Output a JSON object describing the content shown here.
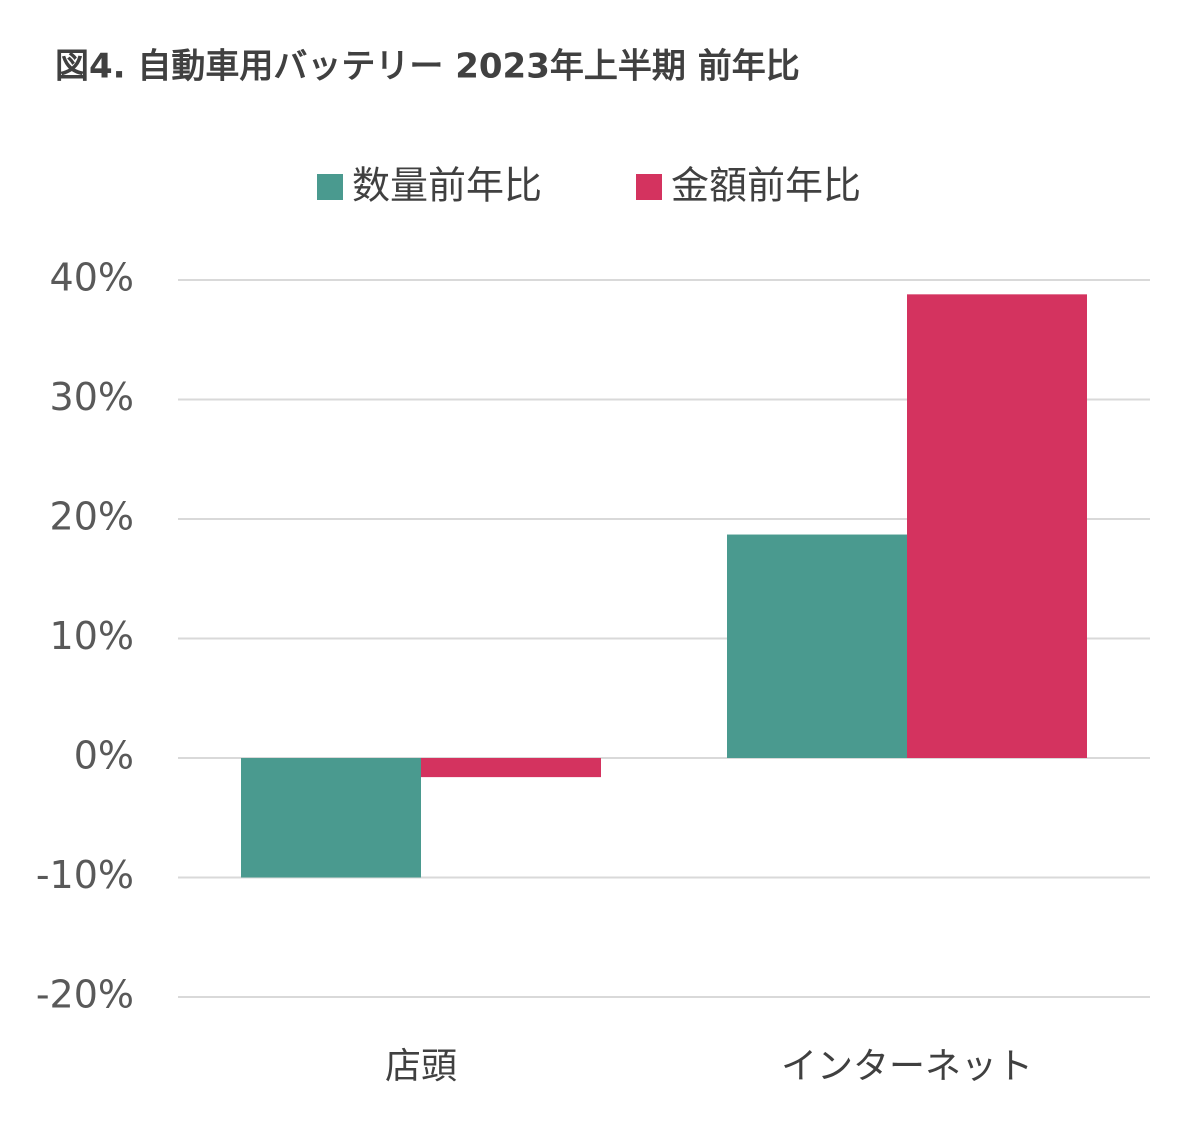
{
  "chart_data": {
    "type": "bar",
    "title": "図4. 自動車用バッテリー 2023年上半期 前年比",
    "categories": [
      "店頭",
      "インターネット"
    ],
    "series": [
      {
        "name": "数量前年比",
        "color": "#4a9a8f",
        "values": [
          -10.0,
          18.7
        ]
      },
      {
        "name": "金額前年比",
        "color": "#d4335f",
        "values": [
          -1.6,
          38.8
        ]
      }
    ],
    "ylim": [
      -20,
      40
    ],
    "yticks": [
      {
        "value": -20,
        "label": "-20%"
      },
      {
        "value": -10,
        "label": "-10%"
      },
      {
        "value": 0,
        "label": "0%"
      },
      {
        "value": 10,
        "label": "10%"
      },
      {
        "value": 20,
        "label": "20%"
      },
      {
        "value": 30,
        "label": "30%"
      },
      {
        "value": 40,
        "label": "40%"
      }
    ],
    "grid": true,
    "legend": "top"
  }
}
